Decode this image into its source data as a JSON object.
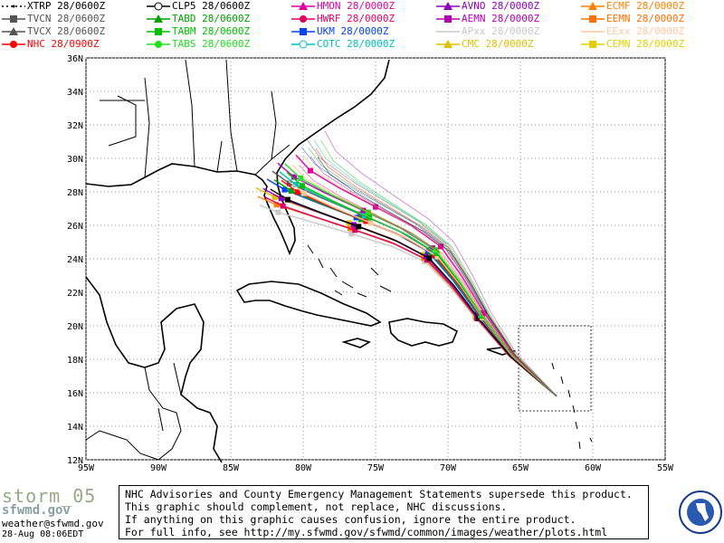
{
  "legend": [
    {
      "label": "XTRP  28/0600Z",
      "color": "#000000",
      "marker": "dot",
      "dash": "2,3"
    },
    {
      "label": "TVCN  28/0600Z",
      "color": "#555555",
      "marker": "square"
    },
    {
      "label": "TVCX  28/0600Z",
      "color": "#555555",
      "marker": "triangle"
    },
    {
      "label": "NHC  28/0900Z",
      "color": "#ff0000",
      "marker": "circle"
    },
    {
      "label": "CLP5  28/0600Z",
      "color": "#000000",
      "marker": "ring"
    },
    {
      "label": "TABD  28/0600Z",
      "color": "#00a000",
      "marker": "triangle"
    },
    {
      "label": "TABM  28/0600Z",
      "color": "#00c000",
      "marker": "square"
    },
    {
      "label": "TABS  28/0600Z",
      "color": "#20e020",
      "marker": "circle"
    },
    {
      "label": "HMON  28/0000Z",
      "color": "#e000a0",
      "marker": "triangle"
    },
    {
      "label": "HWRF  28/0000Z",
      "color": "#e00060",
      "marker": "circle"
    },
    {
      "label": "UKM  28/0000Z",
      "color": "#0040ff",
      "marker": "square"
    },
    {
      "label": "COTC  28/0000Z",
      "color": "#00c0c0",
      "marker": "ring"
    },
    {
      "label": "AVNO  28/0000Z",
      "color": "#9000c0",
      "marker": "triangle"
    },
    {
      "label": "AEMN  28/0000Z",
      "color": "#b000b0",
      "marker": "square"
    },
    {
      "label": "APxx  28/0000Z",
      "color": "#c8c8c8",
      "marker": "none"
    },
    {
      "label": "CMC  28/0000Z",
      "color": "#e0c000",
      "marker": "triangle"
    },
    {
      "label": "ECMF  28/0000Z",
      "color": "#ff8000",
      "marker": "triangle"
    },
    {
      "label": "EEMN  28/0000Z",
      "color": "#ff7000",
      "marker": "square"
    },
    {
      "label": "EExx  28/0000Z",
      "color": "#ffc8a0",
      "marker": "none"
    },
    {
      "label": "CEMN  28/0000Z",
      "color": "#e0d000",
      "marker": "square"
    }
  ],
  "map": {
    "lon_labels": [
      "95W",
      "90W",
      "85W",
      "80W",
      "75W",
      "70W",
      "65W",
      "60W",
      "55W"
    ],
    "lat_labels": [
      "36N",
      "34N",
      "32N",
      "30N",
      "28N",
      "26N",
      "24N",
      "22N",
      "20N",
      "18N",
      "16N",
      "14N",
      "12N"
    ],
    "lon_range": [
      -95,
      -55
    ],
    "lat_range": [
      12,
      36
    ],
    "grid": true,
    "storm_start": {
      "lon": -62.5,
      "lat": 15.8
    },
    "main_track": [
      [
        -62.5,
        15.8
      ],
      [
        -65.5,
        18.2
      ],
      [
        -67.5,
        20.5
      ],
      [
        -69,
        22.5
      ],
      [
        -70.5,
        24.2
      ],
      [
        -72.5,
        25.3
      ],
      [
        -75,
        26.3
      ],
      [
        -77.5,
        27.3
      ],
      [
        -79.5,
        28.2
      ],
      [
        -80.5,
        29
      ]
    ],
    "track_colors": [
      "#c8c8c8",
      "#ff8000",
      "#e0c000",
      "#0040ff",
      "#e00060",
      "#9000c0",
      "#00a000",
      "#555555",
      "#000000",
      "#ff0000",
      "#00c0c0",
      "#b000b0",
      "#ffc8a0",
      "#00c000",
      "#20e020",
      "#e000a0"
    ]
  },
  "footer": {
    "storm_name": "storm_05",
    "email": "weather@sfwmd.gov",
    "timestamp": "28-Aug 08:06EDT",
    "notice": [
      "NHC Advisories and County Emergency Management Statements supersede this product.",
      "This graphic should complement, not replace, NHC discussions.",
      "If anything on this graphic causes confusion, ignore the entire product.",
      "For full info, see  http://my.sfwmd.gov/sfwmd/common/images/weather/plots.html"
    ]
  }
}
